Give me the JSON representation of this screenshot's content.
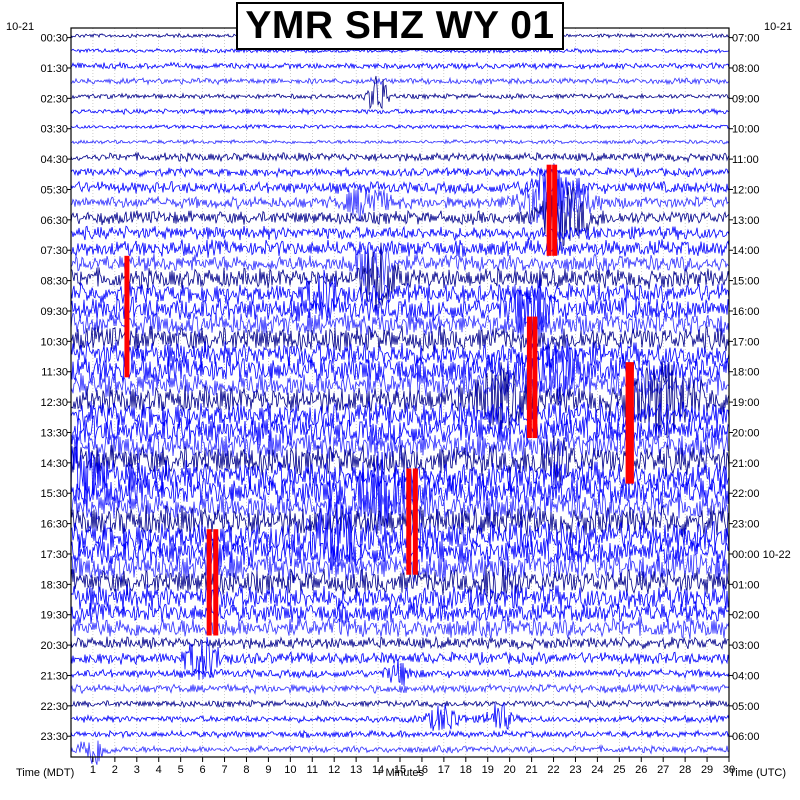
{
  "station_title": "YMR SHZ WY 01",
  "date_left": "10-21",
  "date_right": "10-21",
  "date_rollover_right": "10-22",
  "left_axis_label": "Time (MDT)",
  "bottom_axis_label": "+ Minutes",
  "right_axis_label": "Time (UTC)",
  "colors": {
    "trace_cycle": [
      "#00008b",
      "#0000ff",
      "#0000ff",
      "#3030ff"
    ],
    "clipped": "#ff0000",
    "frame": "#000000",
    "grid": "#9a9a9a"
  },
  "chart_data": {
    "type": "helicorder",
    "xlabel": "+ Minutes",
    "xlim": [
      0,
      30
    ],
    "x_ticks": [
      1,
      2,
      3,
      4,
      5,
      6,
      7,
      8,
      9,
      10,
      11,
      12,
      13,
      14,
      15,
      16,
      17,
      18,
      19,
      20,
      21,
      22,
      23,
      24,
      25,
      26,
      27,
      28,
      29,
      30
    ],
    "left_ylabel": "Time (MDT)",
    "right_ylabel": "Time (UTC)",
    "left_ticks": [
      "00:30",
      "01:30",
      "02:30",
      "03:30",
      "04:30",
      "05:30",
      "06:30",
      "07:30",
      "08:30",
      "09:30",
      "10:30",
      "11:30",
      "12:30",
      "13:30",
      "14:30",
      "15:30",
      "16:30",
      "17:30",
      "18:30",
      "19:30",
      "20:30",
      "21:30",
      "22:30",
      "23:30"
    ],
    "right_ticks": [
      "07:00",
      "08:00",
      "09:00",
      "10:00",
      "11:00",
      "12:00",
      "13:00",
      "14:00",
      "15:00",
      "16:00",
      "17:00",
      "18:00",
      "19:00",
      "20:00",
      "21:00",
      "22:00",
      "23:00",
      "00:00",
      "01:00",
      "02:00",
      "03:00",
      "04:00",
      "05:00",
      "06:00"
    ],
    "rows_per_hour": 2,
    "total_rows": 48,
    "noise_level_by_hour": [
      0.12,
      0.18,
      0.15,
      0.12,
      0.25,
      0.35,
      0.4,
      0.5,
      0.6,
      0.7,
      0.75,
      0.8,
      0.8,
      0.85,
      0.9,
      0.9,
      0.9,
      0.85,
      0.75,
      0.6,
      0.35,
      0.25,
      0.2,
      0.2
    ],
    "events": [
      {
        "row": 4,
        "minute": 14.0,
        "amp": 1.6,
        "width": 0.6
      },
      {
        "row": 10,
        "minute": 22.0,
        "amp": 1.4,
        "width": 1.5
      },
      {
        "row": 11,
        "minute": 22.0,
        "amp": 2.0,
        "width": 2.0
      },
      {
        "row": 12,
        "minute": 22.5,
        "amp": 2.0,
        "width": 1.5
      },
      {
        "row": 11,
        "minute": 13.5,
        "amp": 1.2,
        "width": 1.2
      },
      {
        "row": 15,
        "minute": 13.8,
        "amp": 2.0,
        "width": 1.0
      },
      {
        "row": 16,
        "minute": 14.0,
        "amp": 2.2,
        "width": 1.0
      },
      {
        "row": 17,
        "minute": 11.5,
        "amp": 1.4,
        "width": 1.0
      },
      {
        "row": 18,
        "minute": 21.0,
        "amp": 2.2,
        "width": 1.2
      },
      {
        "row": 22,
        "minute": 22.0,
        "amp": 2.0,
        "width": 1.5
      },
      {
        "row": 24,
        "minute": 19.5,
        "amp": 2.0,
        "width": 1.5
      },
      {
        "row": 24,
        "minute": 27.0,
        "amp": 2.2,
        "width": 2.0
      },
      {
        "row": 28,
        "minute": 22.0,
        "amp": 1.5,
        "width": 1.0
      },
      {
        "row": 29,
        "minute": 0.3,
        "amp": 2.0,
        "width": 1.5
      },
      {
        "row": 30,
        "minute": 14.0,
        "amp": 2.0,
        "width": 1.5
      },
      {
        "row": 33,
        "minute": 12.0,
        "amp": 1.8,
        "width": 1.5
      },
      {
        "row": 36,
        "minute": 19.5,
        "amp": 1.6,
        "width": 0.8
      },
      {
        "row": 41,
        "minute": 6.0,
        "amp": 1.5,
        "width": 1.0
      },
      {
        "row": 42,
        "minute": 15.0,
        "amp": 0.8,
        "width": 0.8
      },
      {
        "row": 45,
        "minute": 17.0,
        "amp": 1.0,
        "width": 1.0
      },
      {
        "row": 45,
        "minute": 19.5,
        "amp": 1.2,
        "width": 0.7
      },
      {
        "row": 47,
        "minute": 1.0,
        "amp": 1.2,
        "width": 0.8
      }
    ],
    "clipped_segments": [
      {
        "minute": 2.55,
        "row_start": 15,
        "row_end": 22
      },
      {
        "minute": 21.8,
        "row_start": 9,
        "row_end": 14
      },
      {
        "minute": 22.05,
        "row_start": 9,
        "row_end": 14
      },
      {
        "minute": 20.9,
        "row_start": 19,
        "row_end": 26
      },
      {
        "minute": 21.15,
        "row_start": 19,
        "row_end": 26
      },
      {
        "minute": 25.4,
        "row_start": 22,
        "row_end": 29
      },
      {
        "minute": 25.55,
        "row_start": 22,
        "row_end": 29
      },
      {
        "minute": 15.4,
        "row_start": 29,
        "row_end": 35
      },
      {
        "minute": 15.7,
        "row_start": 29,
        "row_end": 35
      },
      {
        "minute": 6.3,
        "row_start": 33,
        "row_end": 39
      },
      {
        "minute": 6.6,
        "row_start": 33,
        "row_end": 39
      }
    ]
  }
}
